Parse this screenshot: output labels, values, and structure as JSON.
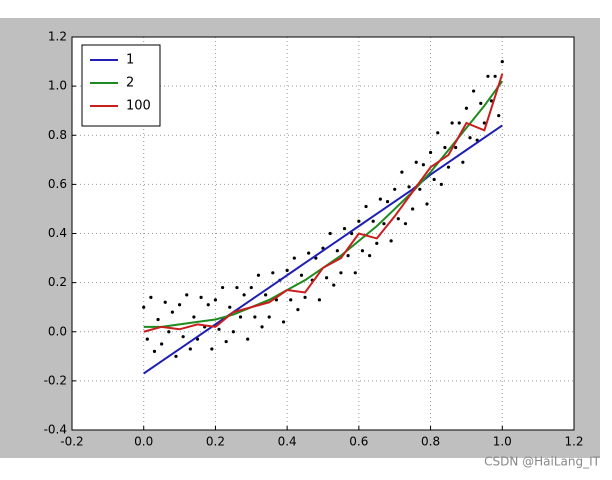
{
  "chart_data": {
    "type": "scatter",
    "xlim": [
      -0.2,
      1.2
    ],
    "ylim": [
      -0.4,
      1.2
    ],
    "xticks": [
      -0.2,
      {
        "value": 0,
        "label": "0.0"
      },
      0.2,
      0.4,
      0.6,
      0.8,
      {
        "value": 1,
        "label": "1.0"
      },
      1.2
    ],
    "yticks": [
      -0.4,
      -0.2,
      {
        "value": 0,
        "label": "0.0"
      },
      0.2,
      0.4,
      0.6,
      0.8,
      {
        "value": 1,
        "label": "1.0"
      },
      1.2
    ],
    "grid": true,
    "legend": "upper left",
    "points": {
      "color": "#000000",
      "x": [
        0.0,
        0.01,
        0.02,
        0.03,
        0.04,
        0.05,
        0.06,
        0.07,
        0.08,
        0.09,
        0.1,
        0.11,
        0.12,
        0.13,
        0.14,
        0.15,
        0.16,
        0.17,
        0.18,
        0.19,
        0.2,
        0.21,
        0.22,
        0.23,
        0.24,
        0.25,
        0.26,
        0.27,
        0.28,
        0.29,
        0.3,
        0.31,
        0.32,
        0.33,
        0.34,
        0.35,
        0.36,
        0.37,
        0.38,
        0.39,
        0.4,
        0.41,
        0.42,
        0.43,
        0.44,
        0.45,
        0.46,
        0.47,
        0.48,
        0.49,
        0.5,
        0.51,
        0.52,
        0.53,
        0.54,
        0.55,
        0.56,
        0.57,
        0.58,
        0.59,
        0.6,
        0.61,
        0.62,
        0.63,
        0.64,
        0.65,
        0.66,
        0.67,
        0.68,
        0.69,
        0.7,
        0.71,
        0.72,
        0.73,
        0.74,
        0.75,
        0.76,
        0.77,
        0.78,
        0.79,
        0.8,
        0.81,
        0.82,
        0.83,
        0.84,
        0.85,
        0.86,
        0.87,
        0.88,
        0.89,
        0.9,
        0.91,
        0.92,
        0.93,
        0.94,
        0.95,
        0.96,
        0.97,
        0.98,
        0.99,
        1.0
      ],
      "values": [
        0.1,
        -0.03,
        0.14,
        -0.08,
        0.05,
        -0.05,
        0.12,
        0.0,
        0.08,
        -0.1,
        0.11,
        -0.02,
        0.15,
        -0.07,
        0.06,
        -0.03,
        0.14,
        0.02,
        0.11,
        -0.07,
        0.13,
        0.01,
        0.18,
        -0.04,
        0.1,
        0.0,
        0.18,
        0.06,
        0.15,
        -0.03,
        0.18,
        0.06,
        0.23,
        0.02,
        0.15,
        0.06,
        0.24,
        0.13,
        0.21,
        0.04,
        0.25,
        0.13,
        0.3,
        0.09,
        0.23,
        0.14,
        0.32,
        0.21,
        0.3,
        0.13,
        0.34,
        0.22,
        0.4,
        0.19,
        0.33,
        0.24,
        0.42,
        0.31,
        0.4,
        0.24,
        0.45,
        0.33,
        0.51,
        0.31,
        0.45,
        0.36,
        0.54,
        0.44,
        0.53,
        0.37,
        0.58,
        0.46,
        0.65,
        0.44,
        0.59,
        0.5,
        0.69,
        0.58,
        0.68,
        0.52,
        0.73,
        0.62,
        0.81,
        0.6,
        0.75,
        0.67,
        0.85,
        0.75,
        0.85,
        0.69,
        0.91,
        0.79,
        0.98,
        0.78,
        0.93,
        0.85,
        1.04,
        0.94,
        1.04,
        0.88,
        1.1
      ]
    },
    "x": [
      0,
      0.05,
      0.1,
      0.15,
      0.2,
      0.25,
      0.3,
      0.35,
      0.4,
      0.45,
      0.5,
      0.55,
      0.6,
      0.65,
      0.7,
      0.75,
      0.8,
      0.85,
      0.9,
      0.95,
      1
    ],
    "series": [
      {
        "name": "1",
        "color": "#1f1fb4",
        "values": [
          -0.17,
          -0.12,
          -0.07,
          -0.02,
          0.03,
          0.08,
          0.13,
          0.18,
          0.23,
          0.28,
          0.33,
          0.38,
          0.43,
          0.48,
          0.53,
          0.58,
          0.64,
          0.69,
          0.74,
          0.79,
          0.84
        ]
      },
      {
        "name": "2",
        "color": "#1f8a1f",
        "values": [
          0.02,
          0.02,
          0.03,
          0.04,
          0.05,
          0.07,
          0.1,
          0.13,
          0.17,
          0.21,
          0.26,
          0.31,
          0.37,
          0.43,
          0.5,
          0.57,
          0.65,
          0.74,
          0.83,
          0.92,
          1.02
        ]
      },
      {
        "name": "100",
        "color": "#c81e1e",
        "values": [
          0.0,
          0.02,
          0.01,
          0.03,
          0.02,
          0.08,
          0.1,
          0.12,
          0.17,
          0.16,
          0.26,
          0.3,
          0.4,
          0.38,
          0.47,
          0.57,
          0.67,
          0.72,
          0.85,
          0.82,
          1.05
        ]
      }
    ],
    "watermark": "CSDN @HaiLang_IT"
  }
}
